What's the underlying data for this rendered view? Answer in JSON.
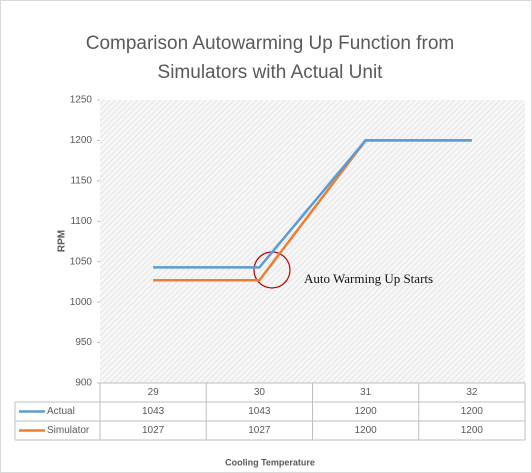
{
  "chart_data": {
    "type": "line",
    "title": [
      "Comparison Autowarming Up Function from",
      "Simulators with Actual Unit"
    ],
    "y_label": "RPM",
    "x_label": "Cooling Temperature",
    "categories": [
      "29",
      "30",
      "31",
      "32"
    ],
    "series": [
      {
        "name": "Actual",
        "color": "#5b9bd5",
        "values": [
          1043,
          1043,
          1200,
          1200
        ]
      },
      {
        "name": "Simulator",
        "color": "#ed7d31",
        "values": [
          1027,
          1027,
          1200,
          1200
        ]
      }
    ],
    "ylim": [
      900,
      1250
    ],
    "yticks": [
      900,
      950,
      1000,
      1050,
      1100,
      1150,
      1200,
      1250
    ],
    "annotation": "Auto Warming Up Starts"
  }
}
